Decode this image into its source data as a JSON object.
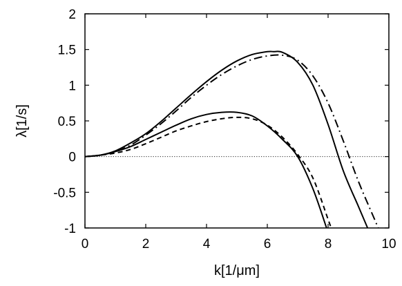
{
  "chart_data": {
    "type": "line",
    "title": "",
    "xlabel": "k[1/μm]",
    "ylabel": "λ[1/s]",
    "xlim": [
      0,
      10
    ],
    "ylim": [
      -1,
      2
    ],
    "xticks": [
      0,
      2,
      4,
      6,
      8,
      10
    ],
    "yticks": [
      -1,
      -0.5,
      0,
      0.5,
      1,
      1.5,
      2
    ],
    "xtick_labels": [
      "0",
      "2",
      "4",
      "6",
      "8",
      "10"
    ],
    "ytick_labels": [
      "-1",
      "-0.5",
      "0",
      "0.5",
      "1",
      "1.5",
      "2"
    ],
    "grid": false,
    "legend": "none",
    "reference_line": {
      "y": 0,
      "style": "dotted"
    },
    "series": [
      {
        "style": "solid",
        "color": "#000000",
        "x": [
          0,
          0.5,
          1,
          1.5,
          2,
          2.5,
          3,
          3.5,
          4,
          4.5,
          5,
          5.5,
          6,
          6.2,
          6.5,
          7,
          7.5,
          8,
          8.5,
          9,
          9.3
        ],
        "y": [
          0,
          0.02,
          0.08,
          0.19,
          0.32,
          0.49,
          0.68,
          0.87,
          1.05,
          1.21,
          1.34,
          1.43,
          1.47,
          1.47,
          1.46,
          1.32,
          1.0,
          0.45,
          -0.2,
          -0.7,
          -1.0
        ]
      },
      {
        "style": "dash-dot",
        "color": "#000000",
        "x": [
          0,
          0.5,
          1,
          1.5,
          2,
          2.5,
          3,
          3.5,
          4,
          4.5,
          5,
          5.5,
          6,
          6.5,
          7,
          7.5,
          8,
          8.5,
          9,
          9.5,
          9.65
        ],
        "y": [
          0,
          0.02,
          0.07,
          0.16,
          0.3,
          0.46,
          0.64,
          0.83,
          1.0,
          1.15,
          1.27,
          1.36,
          1.41,
          1.42,
          1.35,
          1.13,
          0.75,
          0.22,
          -0.35,
          -0.85,
          -1.0
        ]
      },
      {
        "style": "solid",
        "color": "#000000",
        "x": [
          0,
          0.5,
          1,
          1.5,
          2,
          2.5,
          3,
          3.5,
          4,
          4.5,
          5,
          5.5,
          6,
          6.5,
          7,
          7.5,
          7.95
        ],
        "y": [
          0,
          0.02,
          0.07,
          0.14,
          0.24,
          0.34,
          0.44,
          0.53,
          0.59,
          0.62,
          0.62,
          0.57,
          0.43,
          0.24,
          0.0,
          -0.45,
          -1.0
        ]
      },
      {
        "style": "dashed",
        "color": "#000000",
        "x": [
          0,
          0.5,
          1,
          1.5,
          2,
          2.5,
          3,
          3.5,
          4,
          4.5,
          5,
          5.5,
          6,
          6.5,
          7,
          7.5,
          8,
          8.1
        ],
        "y": [
          0,
          0.02,
          0.05,
          0.1,
          0.18,
          0.27,
          0.36,
          0.43,
          0.49,
          0.53,
          0.55,
          0.53,
          0.44,
          0.27,
          0.03,
          -0.3,
          -0.88,
          -1.0
        ]
      }
    ]
  }
}
